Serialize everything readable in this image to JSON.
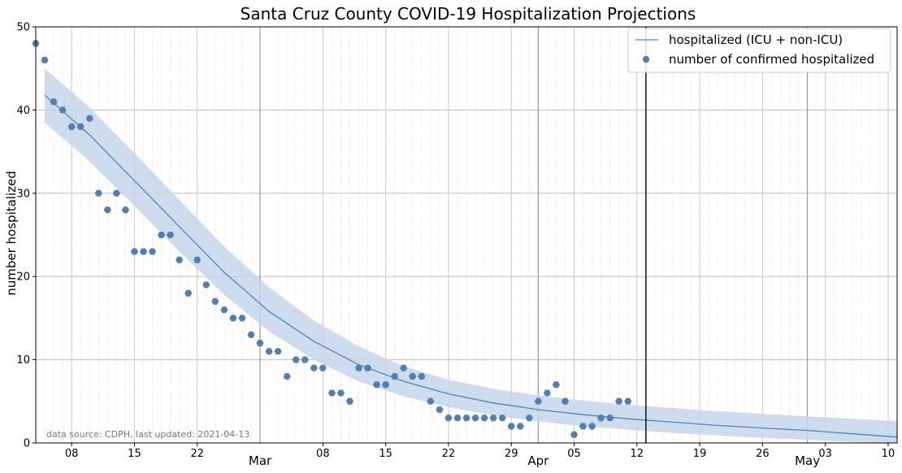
{
  "chart_data": {
    "type": "line",
    "title": "Santa Cruz County COVID-19 Hospitalization Projections",
    "xlabel": "",
    "ylabel": "number hospitalized",
    "xlim": [
      "2021-02-04",
      "2021-05-11"
    ],
    "ylim": [
      0,
      50
    ],
    "yticks": [
      0,
      10,
      20,
      30,
      40,
      50
    ],
    "x_ticks": [
      {
        "date": "2021-02-08",
        "label": "08"
      },
      {
        "date": "2021-02-15",
        "label": "15"
      },
      {
        "date": "2021-02-22",
        "label": "22"
      },
      {
        "date": "2021-03-08",
        "label": "08"
      },
      {
        "date": "2021-03-15",
        "label": "15"
      },
      {
        "date": "2021-03-22",
        "label": "22"
      },
      {
        "date": "2021-03-29",
        "label": "29"
      },
      {
        "date": "2021-04-05",
        "label": "05"
      },
      {
        "date": "2021-04-12",
        "label": "12"
      },
      {
        "date": "2021-04-19",
        "label": "19"
      },
      {
        "date": "2021-04-26",
        "label": "26"
      },
      {
        "date": "2021-05-03",
        "label": "03"
      },
      {
        "date": "2021-05-10",
        "label": "10"
      }
    ],
    "month_ticks": [
      {
        "date": "2021-03-01",
        "label": "Mar"
      },
      {
        "date": "2021-04-01",
        "label": "Apr"
      },
      {
        "date": "2021-05-01",
        "label": "May"
      }
    ],
    "grid": true,
    "legend_position": "top-right",
    "vertical_line_date": "2021-04-13",
    "annotation": "data source: CDPH, last updated: 2021-04-13",
    "series": [
      {
        "name": "hospitalized (ICU + non-ICU)",
        "kind": "line",
        "color": "#4a86c0",
        "x": [
          "2021-02-05",
          "2021-02-10",
          "2021-02-15",
          "2021-02-20",
          "2021-02-25",
          "2021-03-02",
          "2021-03-07",
          "2021-03-12",
          "2021-03-17",
          "2021-03-22",
          "2021-03-27",
          "2021-04-01",
          "2021-04-06",
          "2021-04-11",
          "2021-04-16",
          "2021-04-21",
          "2021-04-26",
          "2021-05-01",
          "2021-05-06",
          "2021-05-11"
        ],
        "y": [
          41.8,
          37.0,
          31.5,
          26.0,
          20.5,
          15.8,
          12.2,
          9.4,
          7.4,
          5.9,
          4.8,
          4.0,
          3.4,
          2.9,
          2.5,
          2.1,
          1.8,
          1.5,
          1.1,
          0.7
        ],
        "lower": [
          38.5,
          33.8,
          28.5,
          23.0,
          17.8,
          13.4,
          10.0,
          7.4,
          5.6,
          4.3,
          3.3,
          2.6,
          2.0,
          1.6,
          1.2,
          0.9,
          0.6,
          0.4,
          0.1,
          0.0
        ],
        "upper": [
          45.0,
          40.3,
          34.8,
          29.2,
          23.6,
          18.7,
          14.7,
          11.6,
          9.2,
          7.6,
          6.5,
          5.7,
          5.1,
          4.6,
          4.2,
          3.8,
          3.5,
          3.2,
          2.9,
          2.6
        ]
      },
      {
        "name": "number of confirmed hospitalized",
        "kind": "scatter",
        "color": "#4f7fb3",
        "x": [
          "2021-02-04",
          "2021-02-05",
          "2021-02-06",
          "2021-02-07",
          "2021-02-08",
          "2021-02-09",
          "2021-02-10",
          "2021-02-11",
          "2021-02-12",
          "2021-02-13",
          "2021-02-14",
          "2021-02-15",
          "2021-02-16",
          "2021-02-17",
          "2021-02-18",
          "2021-02-19",
          "2021-02-20",
          "2021-02-21",
          "2021-02-22",
          "2021-02-23",
          "2021-02-24",
          "2021-02-25",
          "2021-02-26",
          "2021-02-27",
          "2021-02-28",
          "2021-03-01",
          "2021-03-02",
          "2021-03-03",
          "2021-03-04",
          "2021-03-05",
          "2021-03-06",
          "2021-03-07",
          "2021-03-08",
          "2021-03-09",
          "2021-03-10",
          "2021-03-11",
          "2021-03-12",
          "2021-03-13",
          "2021-03-14",
          "2021-03-15",
          "2021-03-16",
          "2021-03-17",
          "2021-03-18",
          "2021-03-19",
          "2021-03-20",
          "2021-03-21",
          "2021-03-22",
          "2021-03-23",
          "2021-03-24",
          "2021-03-25",
          "2021-03-26",
          "2021-03-27",
          "2021-03-28",
          "2021-03-29",
          "2021-03-30",
          "2021-03-31",
          "2021-04-01",
          "2021-04-02",
          "2021-04-03",
          "2021-04-04",
          "2021-04-05",
          "2021-04-06",
          "2021-04-07",
          "2021-04-08",
          "2021-04-09",
          "2021-04-10",
          "2021-04-11",
          "2021-04-12"
        ],
        "y": [
          48,
          46,
          41,
          40,
          38,
          38,
          39,
          30,
          28,
          30,
          28,
          23,
          23,
          23,
          25,
          25,
          22,
          18,
          22,
          19,
          17,
          16,
          15,
          15,
          13,
          12,
          11,
          11,
          8,
          10,
          10,
          9,
          9,
          6,
          6,
          5,
          9,
          9,
          7,
          7,
          8,
          9,
          8,
          8,
          5,
          4,
          3,
          3,
          3,
          3,
          3,
          3,
          3,
          2,
          2,
          3,
          5,
          6,
          7,
          5,
          1,
          2,
          2,
          3,
          3,
          5,
          5,
          null
        ]
      }
    ]
  }
}
